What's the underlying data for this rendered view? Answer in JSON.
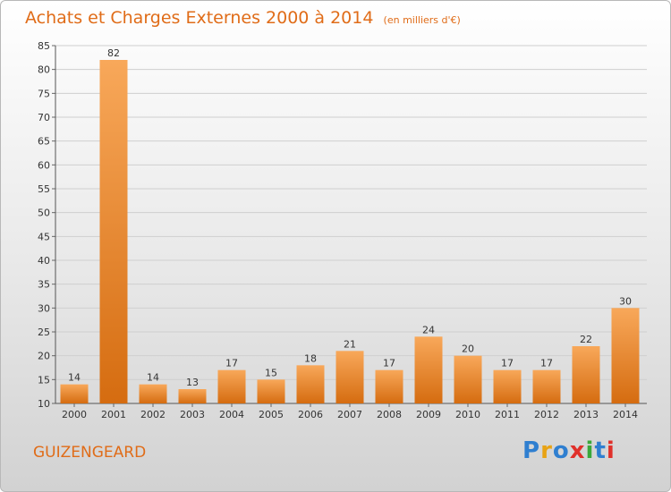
{
  "header": {
    "title": "Achats et Charges Externes 2000 à 2014",
    "unit": "(en milliers d'€)"
  },
  "commune": "GUIZENGEARD",
  "logo": {
    "letters": [
      "P",
      "r",
      "o",
      "x",
      "i",
      "t",
      "i"
    ],
    "colors": [
      "#2f7fd0",
      "#e8a315",
      "#2f7fd0",
      "#e0302a",
      "#3aa83a",
      "#2f7fd0",
      "#e0302a"
    ]
  },
  "chart_data": {
    "type": "bar",
    "title": "Achats et Charges Externes 2000 à 2014",
    "categories": [
      "2000",
      "2001",
      "2002",
      "2003",
      "2004",
      "2005",
      "2006",
      "2007",
      "2008",
      "2009",
      "2010",
      "2011",
      "2012",
      "2013",
      "2014"
    ],
    "values": [
      14,
      82,
      14,
      13,
      17,
      15,
      18,
      21,
      17,
      24,
      20,
      17,
      17,
      22,
      30
    ],
    "ylim": [
      10,
      85
    ],
    "yticks": [
      10,
      15,
      20,
      25,
      30,
      35,
      40,
      45,
      50,
      55,
      60,
      65,
      70,
      75,
      80,
      85
    ],
    "grid": true,
    "colors": {
      "bar_light": "#f8a85a",
      "bar_dark": "#d56c10",
      "text": "#e06c18"
    }
  }
}
